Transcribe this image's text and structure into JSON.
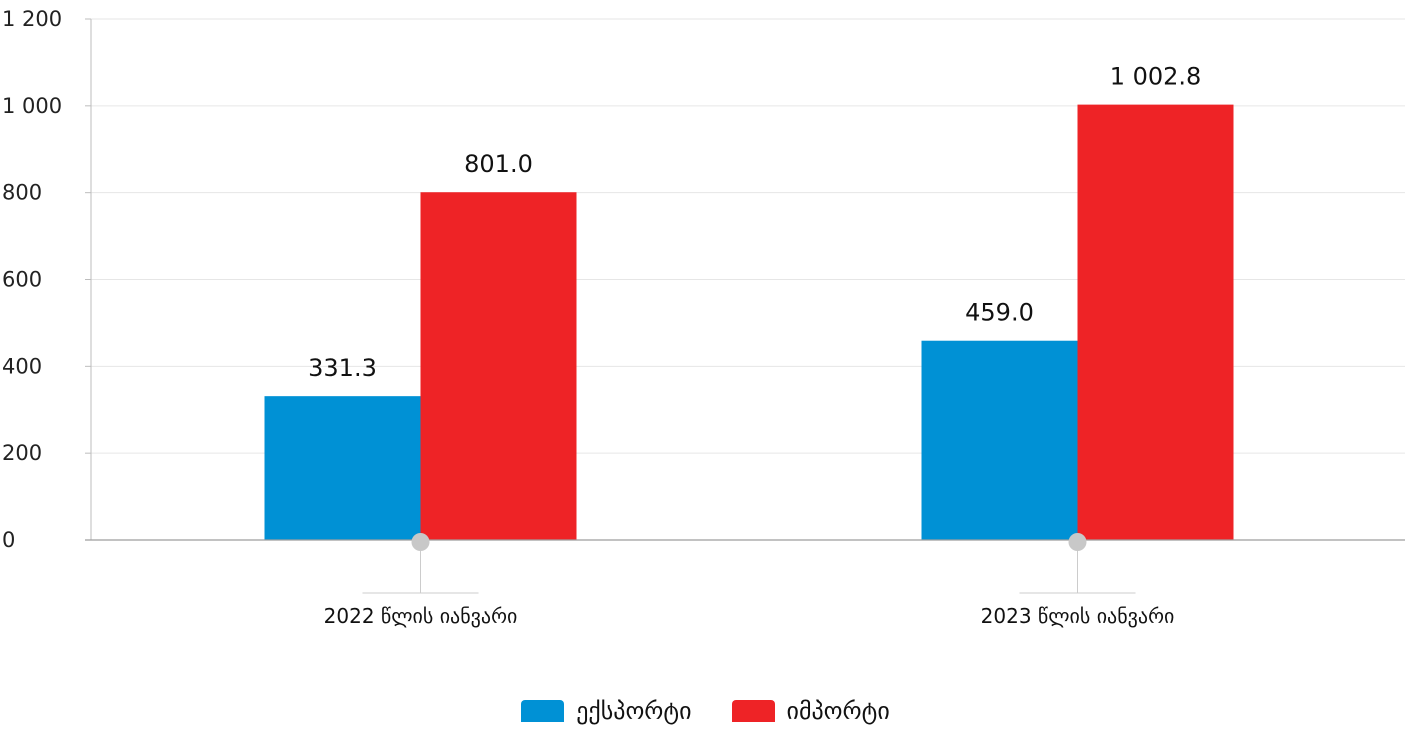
{
  "chart_data": {
    "type": "bar",
    "categories": [
      "2022 წლის იანვარი",
      "2023 წლის იანვარი"
    ],
    "series": [
      {
        "name": "ექსპორტი",
        "values": [
          331.3,
          459.0
        ],
        "labels": [
          "331.3",
          "459.0"
        ],
        "color": "#0091d5"
      },
      {
        "name": "იმპორტი",
        "values": [
          801.0,
          1002.8
        ],
        "labels": [
          "801.0",
          "1 002.8"
        ],
        "color": "#ee2326"
      }
    ],
    "ylim": [
      0,
      1200
    ],
    "yticks": [
      0,
      200,
      400,
      600,
      800,
      1000,
      1200
    ],
    "ytick_labels": [
      "0",
      "200",
      "400",
      "600",
      "800",
      "1 000",
      "1 200"
    ],
    "grid": true,
    "legend_position": "bottom-center"
  }
}
